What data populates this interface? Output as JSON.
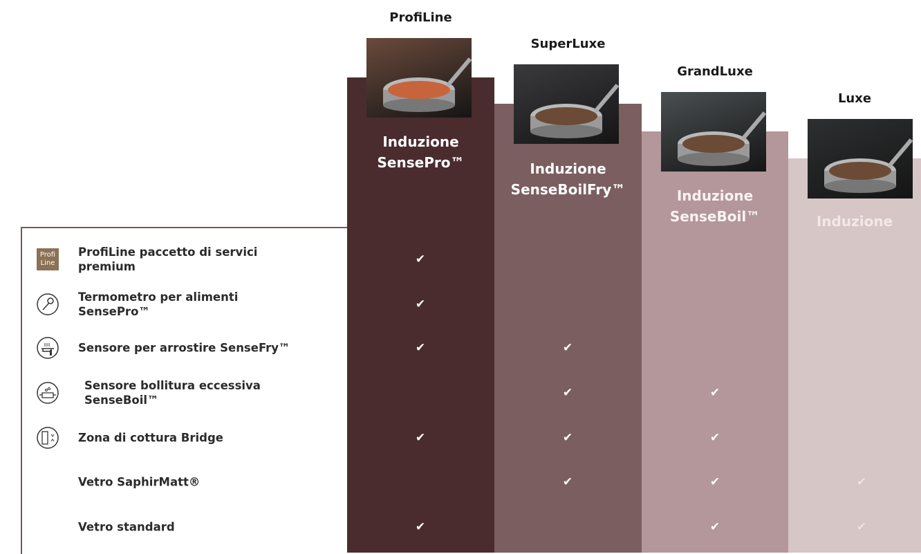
{
  "columns": [
    {
      "name": "ProfiLine",
      "subtitle": [
        "Induzione",
        "SensePro™"
      ]
    },
    {
      "name": "SuperLuxe",
      "subtitle": [
        "Induzione",
        "SenseBoilFry™"
      ]
    },
    {
      "name": "GrandLuxe",
      "subtitle": [
        "Induzione",
        "SenseBoil™"
      ]
    },
    {
      "name": "Luxe",
      "subtitle": [
        "Induzione"
      ]
    }
  ],
  "badge": [
    "Profi",
    "Line"
  ],
  "rows": [
    {
      "label": [
        "ProfiLine paccetto di servici",
        "premium"
      ],
      "checks": [
        "✔",
        null,
        null,
        null
      ]
    },
    {
      "label": [
        "Termometro per alimenti",
        "SensePro™"
      ],
      "checks": [
        "✔",
        null,
        null,
        null
      ]
    },
    {
      "label": [
        "Sensore per arrostire SenseFry™"
      ],
      "checks": [
        "✔",
        "✔",
        null,
        null
      ]
    },
    {
      "label": [
        "Sensore bollitura eccessiva",
        "SenseBoil™"
      ],
      "checks": [
        null,
        "✔",
        "✔",
        null
      ]
    },
    {
      "label": [
        "Zona di cottura Bridge"
      ],
      "checks": [
        "✔",
        "✔",
        "✔",
        null
      ]
    },
    {
      "label": [
        "Vetro SaphirMatt®"
      ],
      "checks": [
        null,
        "✔",
        "✔",
        "✔"
      ]
    },
    {
      "label": [
        "Vetro standard"
      ],
      "checks": [
        "✔",
        null,
        "✔",
        "✔"
      ]
    }
  ]
}
